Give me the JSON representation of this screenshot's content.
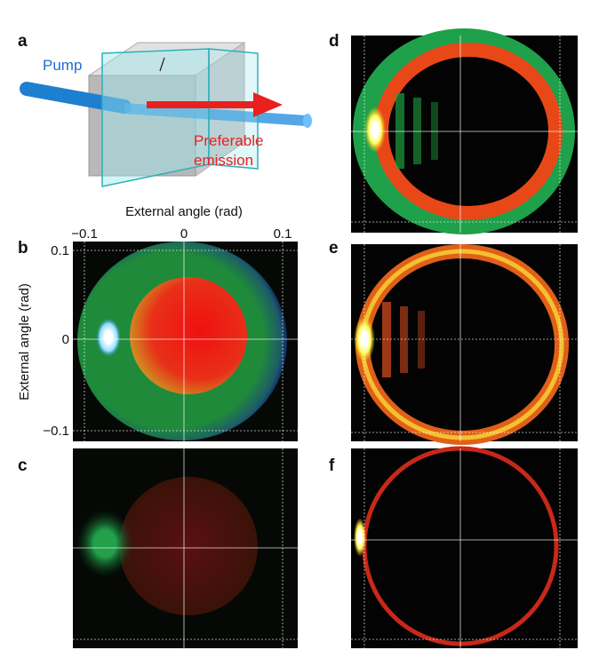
{
  "panels": {
    "a": "a",
    "b": "b",
    "c": "c",
    "d": "d",
    "e": "e",
    "f": "f"
  },
  "diagram": {
    "pump": "Pump",
    "emission": [
      "Preferable",
      "emission"
    ]
  },
  "axes": {
    "x_label": "External angle (rad)",
    "y_label": "External angle (rad)",
    "x_ticks": [
      "−0.1",
      "0",
      "0.1"
    ],
    "y_ticks": [
      "0.1",
      "0",
      "−0.1"
    ]
  }
}
